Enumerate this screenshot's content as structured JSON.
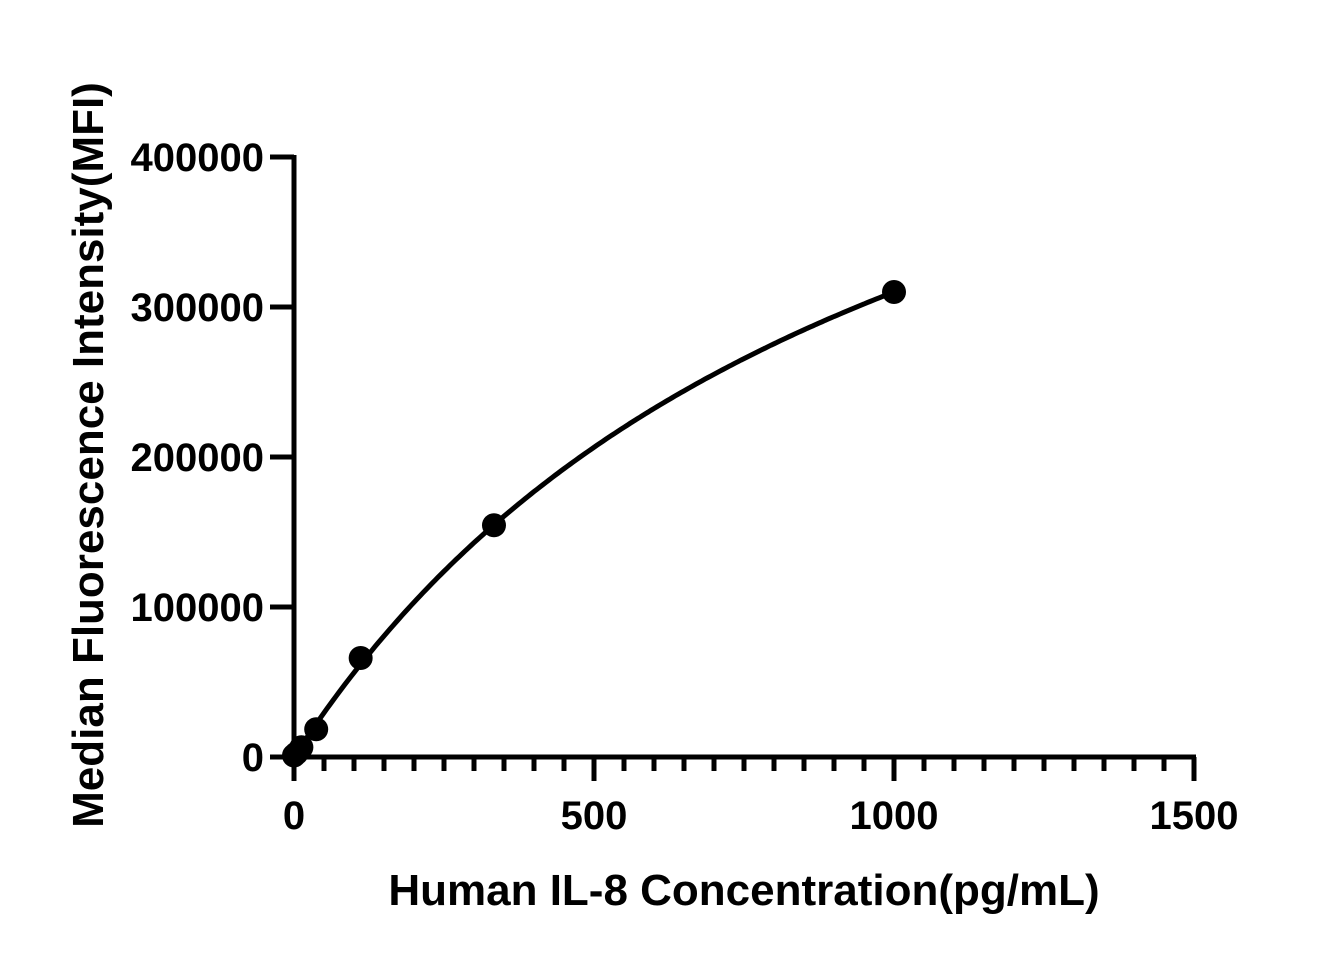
{
  "chart_data": {
    "type": "scatter",
    "title": "",
    "xlabel": "Human IL-8 Concentration(pg/mL)",
    "ylabel": "Median Fluorescence Intensity(MFI)",
    "xlim": [
      0,
      1500
    ],
    "ylim": [
      0,
      400000
    ],
    "xticks": [
      "0",
      "500",
      "1000",
      "1500"
    ],
    "yticks": [
      "0",
      "100000",
      "200000",
      "300000",
      "400000"
    ],
    "grid": false,
    "fit_curve": true,
    "series": [
      {
        "x": [
          0,
          4.1,
          12.3,
          37,
          111.1,
          333.3,
          1000
        ],
        "y": [
          1000,
          2500,
          6500,
          18500,
          66000,
          154500,
          310000
        ]
      }
    ],
    "colors": {
      "marker": "#000000",
      "line": "#000000"
    }
  }
}
